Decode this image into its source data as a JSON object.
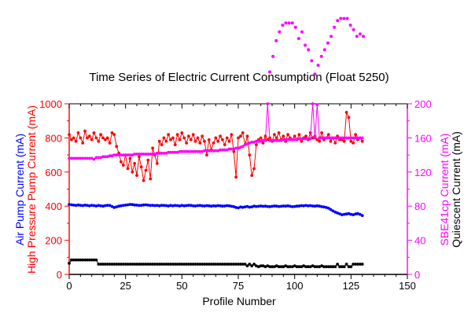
{
  "chart_data": {
    "type": "line",
    "title": "Time Series of Electric Current Consumption (Float 5250)",
    "xlabel": "Profile Number",
    "xlim": [
      0,
      150
    ],
    "x_ticks": [
      "0",
      "25",
      "50",
      "75",
      "100",
      "125",
      "150"
    ],
    "left_axis": {
      "ylim": [
        0,
        1000
      ],
      "ticks": [
        "0",
        "200",
        "400",
        "600",
        "800",
        "1000"
      ],
      "label_lines": [
        {
          "text": "Air Pump Current (mA)",
          "color": "#0000ff"
        },
        {
          "text": "High Pressure Pump Current (mA)",
          "color": "#ff0000"
        }
      ]
    },
    "right_axis": {
      "ylim": [
        0,
        200
      ],
      "ticks": [
        "0",
        "40",
        "80",
        "120",
        "160",
        "200"
      ],
      "label_lines": [
        {
          "text": "SBE41cp Current (mA)",
          "color": "#ff00ff"
        },
        {
          "text": "Quiescent Current (mA)",
          "color": "#000000"
        }
      ]
    },
    "series": [
      {
        "color": "#ff0000",
        "axis": "left",
        "x": [
          0,
          1,
          2,
          3,
          4,
          5,
          6,
          7,
          8,
          9,
          10,
          11,
          12,
          13,
          14,
          15,
          16,
          17,
          18,
          19,
          20,
          21,
          22,
          23,
          24,
          25,
          26,
          27,
          28,
          29,
          30,
          31,
          32,
          33,
          34,
          35,
          36,
          37,
          38,
          39,
          40,
          41,
          42,
          43,
          44,
          45,
          46,
          47,
          48,
          49,
          50,
          51,
          52,
          53,
          54,
          55,
          56,
          57,
          58,
          59,
          60,
          61,
          62,
          63,
          64,
          65,
          66,
          67,
          68,
          69,
          70,
          71,
          72,
          73,
          74,
          75,
          76,
          77,
          78,
          79,
          80,
          81,
          82,
          83,
          84,
          85,
          86,
          87,
          88,
          89,
          90,
          91,
          92,
          93,
          94,
          95,
          96,
          97,
          98,
          99,
          100,
          101,
          102,
          103,
          104,
          105,
          106,
          107,
          108,
          109,
          110,
          111,
          112,
          113,
          114,
          115,
          116,
          117,
          118,
          119,
          120,
          121,
          122,
          123,
          124,
          125,
          126,
          127,
          128,
          129,
          130
        ],
        "values": [
          820,
          790,
          800,
          780,
          830,
          800,
          770,
          840,
          800,
          810,
          790,
          830,
          800,
          780,
          820,
          800,
          790,
          800,
          770,
          830,
          820,
          750,
          710,
          660,
          640,
          700,
          620,
          680,
          600,
          650,
          580,
          690,
          630,
          550,
          610,
          670,
          560,
          740,
          700,
          650,
          780,
          760,
          800,
          780,
          820,
          790,
          800,
          760,
          820,
          790,
          830,
          800,
          770,
          810,
          790,
          820,
          780,
          800,
          770,
          810,
          780,
          700,
          790,
          730,
          770,
          800,
          780,
          810,
          790,
          760,
          800,
          780,
          820,
          720,
          570,
          800,
          810,
          830,
          760,
          810,
          700,
          580,
          620,
          760,
          790,
          800,
          770,
          810,
          790,
          800,
          780,
          820,
          800,
          830,
          790,
          810,
          780,
          820,
          800,
          790,
          810,
          790,
          820,
          780,
          800,
          810,
          790,
          830,
          800,
          810,
          790,
          780,
          830,
          790,
          800,
          820,
          780,
          800,
          770,
          810,
          790,
          790,
          780,
          950,
          920,
          780,
          770,
          820,
          790,
          800,
          780
        ]
      },
      {
        "color": "#0000ff",
        "axis": "left",
        "x": [
          0,
          1,
          2,
          3,
          4,
          5,
          6,
          7,
          8,
          9,
          10,
          11,
          12,
          13,
          14,
          15,
          16,
          17,
          18,
          19,
          20,
          21,
          22,
          23,
          24,
          25,
          26,
          27,
          28,
          29,
          30,
          31,
          32,
          33,
          34,
          35,
          36,
          37,
          38,
          39,
          40,
          41,
          42,
          43,
          44,
          45,
          46,
          47,
          48,
          49,
          50,
          51,
          52,
          53,
          54,
          55,
          56,
          57,
          58,
          59,
          60,
          61,
          62,
          63,
          64,
          65,
          66,
          67,
          68,
          69,
          70,
          71,
          72,
          73,
          74,
          75,
          76,
          77,
          78,
          79,
          80,
          81,
          82,
          83,
          84,
          85,
          86,
          87,
          88,
          89,
          90,
          91,
          92,
          93,
          94,
          95,
          96,
          97,
          98,
          99,
          100,
          101,
          102,
          103,
          104,
          105,
          106,
          107,
          108,
          109,
          110,
          111,
          112,
          113,
          114,
          115,
          116,
          117,
          118,
          119,
          120,
          121,
          122,
          123,
          124,
          125,
          126,
          127,
          128,
          129,
          130
        ],
        "values": [
          410,
          408,
          406,
          404,
          407,
          405,
          403,
          406,
          404,
          402,
          405,
          403,
          401,
          404,
          402,
          400,
          403,
          405,
          404,
          398,
          392,
          396,
          400,
          402,
          404,
          406,
          408,
          410,
          409,
          407,
          406,
          404,
          405,
          407,
          408,
          406,
          404,
          405,
          403,
          404,
          402,
          405,
          404,
          403,
          401,
          404,
          402,
          404,
          403,
          401,
          404,
          402,
          403,
          405,
          404,
          402,
          401,
          403,
          404,
          402,
          401,
          403,
          402,
          400,
          402,
          401,
          403,
          402,
          400,
          401,
          403,
          402,
          399,
          397,
          392,
          390,
          395,
          393,
          396,
          398,
          394,
          396,
          400,
          398,
          399,
          401,
          399,
          400,
          398,
          397,
          399,
          401,
          400,
          398,
          399,
          401,
          400,
          402,
          399,
          397,
          398,
          400,
          401,
          403,
          402,
          404,
          402,
          403,
          401,
          400,
          402,
          400,
          397,
          395,
          392,
          388,
          380,
          372,
          365,
          360,
          355,
          350,
          352,
          354,
          356,
          352,
          350,
          354,
          356,
          352,
          345
        ]
      },
      {
        "color": "#ff00ff",
        "axis": "right",
        "x": [
          0,
          1,
          2,
          3,
          4,
          5,
          6,
          7,
          8,
          9,
          10,
          11,
          12,
          13,
          14,
          15,
          16,
          17,
          18,
          19,
          20,
          21,
          22,
          23,
          24,
          25,
          26,
          27,
          28,
          29,
          30,
          31,
          32,
          33,
          34,
          35,
          36,
          37,
          38,
          39,
          40,
          41,
          42,
          43,
          44,
          45,
          46,
          47,
          48,
          49,
          50,
          51,
          52,
          53,
          54,
          55,
          56,
          57,
          58,
          59,
          60,
          61,
          62,
          63,
          64,
          65,
          66,
          67,
          68,
          69,
          70,
          71,
          72,
          73,
          74,
          75,
          76,
          77,
          78,
          79,
          80,
          81,
          82,
          83,
          84,
          85,
          86,
          87,
          88,
          89,
          90,
          91,
          92,
          93,
          94,
          95,
          96,
          97,
          98,
          99,
          100,
          101,
          102,
          103,
          104,
          105,
          106,
          107,
          108,
          109,
          110,
          111,
          112,
          113,
          114,
          115,
          116,
          117,
          118,
          119,
          120,
          121,
          122,
          123,
          124,
          125,
          126,
          127,
          128,
          129,
          130
        ],
        "values": [
          136,
          136,
          136,
          136,
          136,
          136,
          136,
          136,
          136,
          136,
          136,
          135,
          137,
          137,
          137,
          138,
          138,
          138,
          139,
          139,
          140,
          140,
          140,
          140,
          140,
          140,
          140,
          140,
          140,
          141,
          141,
          141,
          141,
          141,
          141,
          141,
          141,
          141,
          141,
          142,
          142,
          142,
          142,
          142,
          143,
          143,
          143,
          143,
          143,
          144,
          144,
          144,
          144,
          144,
          144,
          144,
          144,
          144,
          144,
          144,
          145,
          145,
          145,
          145,
          145,
          145,
          145,
          146,
          146,
          146,
          146,
          147,
          147,
          147,
          148,
          148,
          149,
          150,
          152,
          153,
          154,
          155,
          155,
          156,
          156,
          156,
          157,
          157,
          200,
          157,
          157,
          157,
          157,
          157,
          157,
          158,
          158,
          158,
          158,
          158,
          158,
          158,
          159,
          159,
          159,
          159,
          159,
          159,
          200,
          160,
          199,
          160,
          160,
          160,
          160,
          160,
          160,
          160,
          160,
          160,
          160,
          160,
          160,
          160,
          160,
          160,
          160,
          160,
          160,
          160,
          160
        ]
      },
      {
        "color": "#000000",
        "axis": "right",
        "x": [
          0,
          1,
          2,
          3,
          4,
          5,
          6,
          7,
          8,
          9,
          10,
          11,
          12,
          13,
          14,
          15,
          16,
          17,
          18,
          19,
          20,
          21,
          22,
          23,
          24,
          25,
          26,
          27,
          28,
          29,
          30,
          31,
          32,
          33,
          34,
          35,
          36,
          37,
          38,
          39,
          40,
          41,
          42,
          43,
          44,
          45,
          46,
          47,
          48,
          49,
          50,
          51,
          52,
          53,
          54,
          55,
          56,
          57,
          58,
          59,
          60,
          61,
          62,
          63,
          64,
          65,
          66,
          67,
          68,
          69,
          70,
          71,
          72,
          73,
          74,
          75,
          76,
          77,
          78,
          79,
          80,
          81,
          82,
          83,
          84,
          85,
          86,
          87,
          88,
          89,
          90,
          91,
          92,
          93,
          94,
          95,
          96,
          97,
          98,
          99,
          100,
          101,
          102,
          103,
          104,
          105,
          106,
          107,
          108,
          109,
          110,
          111,
          112,
          113,
          114,
          115,
          116,
          117,
          118,
          119,
          120,
          121,
          122,
          123,
          124,
          125,
          126,
          127,
          128,
          129,
          130
        ],
        "values": [
          13,
          17,
          17,
          17,
          17,
          17,
          17,
          17,
          17,
          17,
          17,
          17,
          17,
          12,
          12,
          12,
          12,
          12,
          12,
          12,
          12,
          12,
          12,
          12,
          12,
          12,
          12,
          12,
          12,
          12,
          12,
          12,
          12,
          12,
          12,
          12,
          12,
          12,
          12,
          12,
          12,
          12,
          12,
          12,
          12,
          12,
          12,
          12,
          12,
          12,
          12,
          12,
          12,
          12,
          12,
          12,
          12,
          12,
          12,
          12,
          12,
          12,
          12,
          12,
          12,
          12,
          12,
          12,
          12,
          12,
          12,
          12,
          12,
          12,
          12,
          12,
          12,
          12,
          12,
          10,
          12,
          10,
          12,
          10,
          9,
          10,
          10,
          9,
          10,
          9,
          9,
          9,
          10,
          9,
          9,
          9,
          10,
          9,
          9,
          9,
          10,
          9,
          9,
          9,
          10,
          9,
          9,
          9,
          10,
          9,
          9,
          9,
          10,
          9,
          9,
          9,
          9,
          9,
          9,
          12,
          9,
          9,
          9,
          12,
          9,
          9,
          12,
          12,
          12,
          12,
          12
        ]
      }
    ],
    "overlay": {
      "color": "#ff00ff",
      "x": [
        0,
        1,
        2,
        3,
        4,
        5,
        6,
        7,
        8,
        9,
        10,
        11,
        12,
        13,
        14,
        15,
        16,
        17,
        18,
        19,
        20,
        21,
        22,
        23,
        24,
        25,
        26,
        27,
        28,
        29
      ],
      "values": [
        3,
        10,
        17,
        21,
        24,
        25,
        25,
        25,
        23,
        18,
        21,
        15,
        13,
        8,
        2,
        6,
        10,
        13,
        16,
        19,
        23,
        26,
        27,
        27,
        27,
        24,
        22,
        19,
        20,
        19
      ]
    }
  }
}
